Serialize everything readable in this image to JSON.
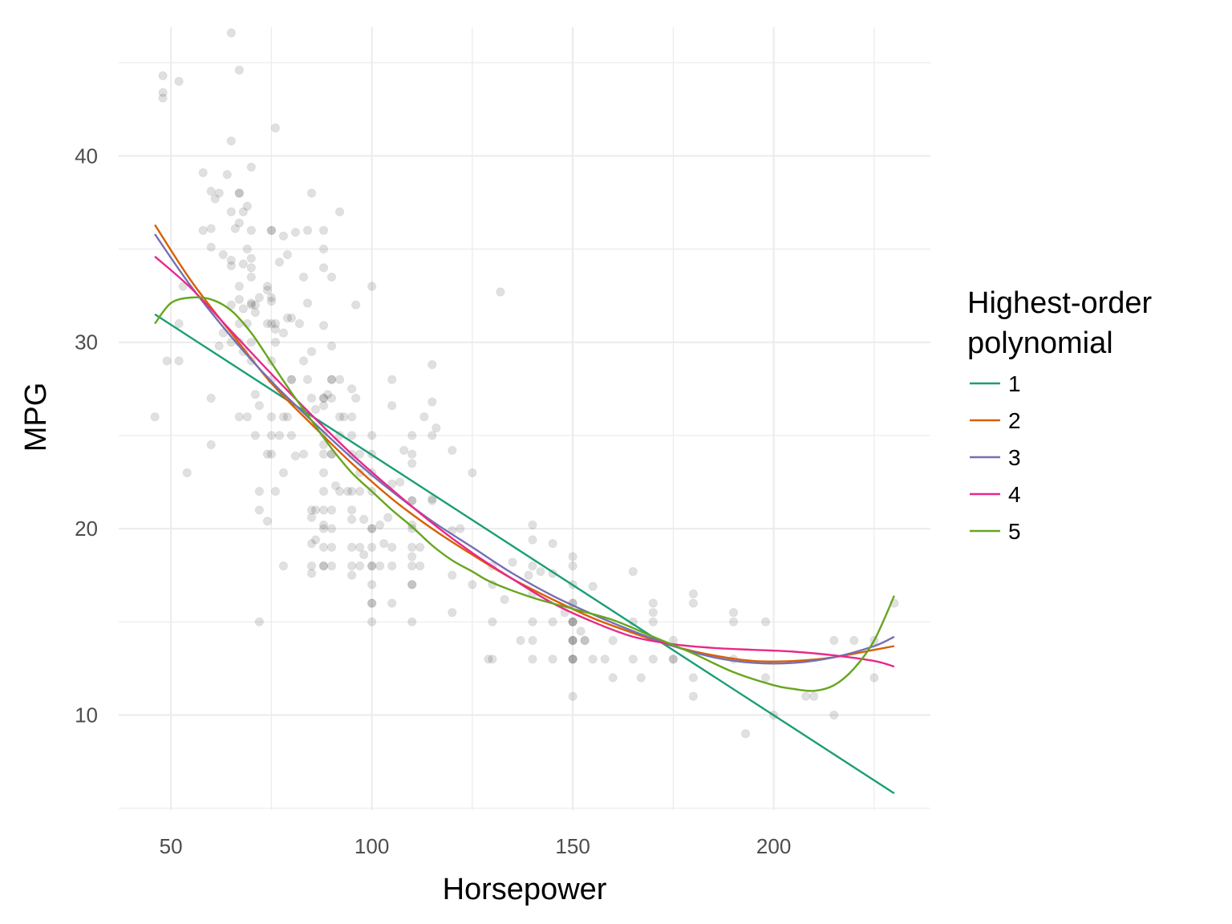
{
  "chart_data": {
    "type": "scatter",
    "xlabel": "Horsepower",
    "ylabel": "MPG",
    "xlim": [
      37,
      239
    ],
    "ylim": [
      4.9,
      46.9
    ],
    "x_ticks": [
      50,
      100,
      150,
      200
    ],
    "y_ticks": [
      10,
      20,
      30,
      40
    ],
    "grid": true,
    "legend": {
      "title_lines": [
        "Highest-order",
        "polynomial"
      ],
      "position": "right"
    },
    "points": [
      [
        46,
        26
      ],
      [
        48,
        43.1
      ],
      [
        48,
        43.4
      ],
      [
        48,
        44.3
      ],
      [
        49,
        29
      ],
      [
        52,
        44
      ],
      [
        52,
        29
      ],
      [
        52,
        31
      ],
      [
        53,
        33
      ],
      [
        54,
        23
      ],
      [
        58,
        39.1
      ],
      [
        58,
        36
      ],
      [
        60,
        38.1
      ],
      [
        60,
        36.1
      ],
      [
        60,
        35.1
      ],
      [
        60,
        27
      ],
      [
        60,
        24.5
      ],
      [
        61,
        37.7
      ],
      [
        62,
        38
      ],
      [
        62,
        29.8
      ],
      [
        63,
        34.7
      ],
      [
        63,
        30.5
      ],
      [
        64,
        39
      ],
      [
        65,
        46.6
      ],
      [
        65,
        40.8
      ],
      [
        65,
        37
      ],
      [
        65,
        34.4
      ],
      [
        65,
        34.1
      ],
      [
        65,
        32
      ],
      [
        65,
        30
      ],
      [
        66,
        36.1
      ],
      [
        67,
        44.6
      ],
      [
        67,
        38
      ],
      [
        67,
        38
      ],
      [
        67,
        36.4
      ],
      [
        67,
        33
      ],
      [
        67,
        32.3
      ],
      [
        67,
        31
      ],
      [
        67,
        30
      ],
      [
        67,
        26
      ],
      [
        68,
        37
      ],
      [
        68,
        34.2
      ],
      [
        68,
        31.8
      ],
      [
        68,
        29.5
      ],
      [
        69,
        37.3
      ],
      [
        69,
        35
      ],
      [
        69,
        31
      ],
      [
        69,
        26
      ],
      [
        70,
        39.4
      ],
      [
        70,
        36
      ],
      [
        70,
        34.5
      ],
      [
        70,
        34
      ],
      [
        70,
        33.5
      ],
      [
        70,
        32.1
      ],
      [
        70,
        32
      ],
      [
        70,
        30
      ],
      [
        70,
        29
      ],
      [
        71,
        32
      ],
      [
        71,
        31.6
      ],
      [
        71,
        27.2
      ],
      [
        71,
        25
      ],
      [
        72,
        32.4
      ],
      [
        72,
        26.6
      ],
      [
        72,
        22
      ],
      [
        72,
        21
      ],
      [
        72,
        15
      ],
      [
        74,
        33
      ],
      [
        74,
        32.8
      ],
      [
        74,
        31
      ],
      [
        74,
        24
      ],
      [
        74,
        20.4
      ],
      [
        75,
        36
      ],
      [
        75,
        36
      ],
      [
        75,
        32.4
      ],
      [
        75,
        32.2
      ],
      [
        75,
        31
      ],
      [
        75,
        29
      ],
      [
        75,
        28
      ],
      [
        75,
        26
      ],
      [
        75,
        24
      ],
      [
        75,
        25
      ],
      [
        76,
        41.5
      ],
      [
        76,
        31
      ],
      [
        76,
        30.7
      ],
      [
        76,
        30
      ],
      [
        76,
        22
      ],
      [
        77,
        34.3
      ],
      [
        77,
        25
      ],
      [
        78,
        35.7
      ],
      [
        78,
        30.5
      ],
      [
        78,
        26
      ],
      [
        78,
        23
      ],
      [
        78,
        18
      ],
      [
        79,
        34.7
      ],
      [
        79,
        31.3
      ],
      [
        79,
        26
      ],
      [
        80,
        31.3
      ],
      [
        80,
        28
      ],
      [
        80,
        25
      ],
      [
        80,
        28
      ],
      [
        81,
        35.9
      ],
      [
        81,
        23.9
      ],
      [
        82,
        31
      ],
      [
        83,
        33.5
      ],
      [
        83,
        29
      ],
      [
        83,
        24
      ],
      [
        84,
        36
      ],
      [
        84,
        32.1
      ],
      [
        84,
        28
      ],
      [
        85,
        38
      ],
      [
        85,
        29.5
      ],
      [
        85,
        27
      ],
      [
        85,
        21
      ],
      [
        85,
        20.6
      ],
      [
        85,
        19.2
      ],
      [
        85,
        18
      ],
      [
        85,
        17.6
      ],
      [
        86,
        26.4
      ],
      [
        86,
        21
      ],
      [
        86,
        19.4
      ],
      [
        88,
        36
      ],
      [
        88,
        35
      ],
      [
        88,
        34
      ],
      [
        88,
        30.9
      ],
      [
        88,
        27
      ],
      [
        88,
        27
      ],
      [
        88,
        25.1
      ],
      [
        88,
        26.6
      ],
      [
        88,
        24.5
      ],
      [
        88,
        24
      ],
      [
        88,
        23
      ],
      [
        88,
        22
      ],
      [
        88,
        21
      ],
      [
        88,
        20
      ],
      [
        88,
        19
      ],
      [
        88,
        18
      ],
      [
        88,
        18
      ],
      [
        88,
        20.2
      ],
      [
        89,
        27.2
      ],
      [
        90,
        33.5
      ],
      [
        90,
        29.8
      ],
      [
        90,
        28
      ],
      [
        90,
        28
      ],
      [
        90,
        27
      ],
      [
        90,
        24
      ],
      [
        90,
        24
      ],
      [
        90,
        21
      ],
      [
        90,
        20
      ],
      [
        90,
        19
      ],
      [
        90,
        18
      ],
      [
        91,
        22.3
      ],
      [
        92,
        37
      ],
      [
        92,
        28
      ],
      [
        92,
        26
      ],
      [
        92,
        25
      ],
      [
        92,
        22
      ],
      [
        93,
        26
      ],
      [
        94,
        22
      ],
      [
        95,
        27.5
      ],
      [
        95,
        26
      ],
      [
        95,
        25
      ],
      [
        95,
        24
      ],
      [
        95,
        22
      ],
      [
        95,
        21
      ],
      [
        95,
        20.5
      ],
      [
        95,
        19
      ],
      [
        95,
        18
      ],
      [
        95,
        17.5
      ],
      [
        96,
        32
      ],
      [
        96,
        27
      ],
      [
        97,
        24
      ],
      [
        97,
        23
      ],
      [
        97,
        22
      ],
      [
        97,
        19
      ],
      [
        97,
        18
      ],
      [
        98,
        20.5
      ],
      [
        98,
        18.6
      ],
      [
        100,
        33
      ],
      [
        100,
        25
      ],
      [
        100,
        24
      ],
      [
        100,
        23
      ],
      [
        100,
        22
      ],
      [
        100,
        20
      ],
      [
        100,
        20
      ],
      [
        100,
        19
      ],
      [
        100,
        18
      ],
      [
        100,
        18
      ],
      [
        100,
        17
      ],
      [
        100,
        16
      ],
      [
        100,
        16
      ],
      [
        100,
        15
      ],
      [
        102,
        20.2
      ],
      [
        102,
        18
      ],
      [
        103,
        19.2
      ],
      [
        104,
        20.6
      ],
      [
        105,
        28
      ],
      [
        105,
        26.6
      ],
      [
        105,
        22.4
      ],
      [
        105,
        18
      ],
      [
        105,
        16
      ],
      [
        105,
        19
      ],
      [
        107,
        22.5
      ],
      [
        108,
        24.2
      ],
      [
        110,
        25
      ],
      [
        110,
        24
      ],
      [
        110,
        23.5
      ],
      [
        110,
        21.5
      ],
      [
        110,
        21.5
      ],
      [
        110,
        20.2
      ],
      [
        110,
        20
      ],
      [
        110,
        19
      ],
      [
        110,
        18.5
      ],
      [
        110,
        18
      ],
      [
        110,
        17
      ],
      [
        110,
        17
      ],
      [
        110,
        15
      ],
      [
        112,
        19
      ],
      [
        112,
        18
      ],
      [
        113,
        26
      ],
      [
        115,
        28.8
      ],
      [
        115,
        26.8
      ],
      [
        115,
        25
      ],
      [
        115,
        21.6
      ],
      [
        115,
        21.5
      ],
      [
        116,
        25.4
      ],
      [
        120,
        24.2
      ],
      [
        120,
        19.9
      ],
      [
        120,
        17.5
      ],
      [
        120,
        15.5
      ],
      [
        122,
        20
      ],
      [
        125,
        23
      ],
      [
        125,
        17
      ],
      [
        129,
        13
      ],
      [
        130,
        18
      ],
      [
        130,
        17
      ],
      [
        130,
        15
      ],
      [
        130,
        13
      ],
      [
        132,
        32.7
      ],
      [
        133,
        16.2
      ],
      [
        135,
        18.2
      ],
      [
        137,
        14
      ],
      [
        139,
        17.5
      ],
      [
        140,
        20.2
      ],
      [
        140,
        19.4
      ],
      [
        140,
        18
      ],
      [
        140,
        16.5
      ],
      [
        140,
        15
      ],
      [
        140,
        14
      ],
      [
        140,
        13
      ],
      [
        142,
        17.7
      ],
      [
        145,
        19.2
      ],
      [
        145,
        17.6
      ],
      [
        145,
        15
      ],
      [
        145,
        13
      ],
      [
        148,
        15.5
      ],
      [
        150,
        18.5
      ],
      [
        150,
        18
      ],
      [
        150,
        17
      ],
      [
        150,
        16
      ],
      [
        150,
        16
      ],
      [
        150,
        15
      ],
      [
        150,
        15
      ],
      [
        150,
        15
      ],
      [
        150,
        14
      ],
      [
        150,
        14
      ],
      [
        150,
        14
      ],
      [
        150,
        13
      ],
      [
        150,
        13
      ],
      [
        150,
        13
      ],
      [
        150,
        11
      ],
      [
        152,
        14.5
      ],
      [
        153,
        14
      ],
      [
        153,
        14
      ],
      [
        155,
        16.9
      ],
      [
        155,
        13
      ],
      [
        158,
        13
      ],
      [
        160,
        14
      ],
      [
        160,
        12
      ],
      [
        165,
        17.7
      ],
      [
        165,
        15
      ],
      [
        165,
        13
      ],
      [
        167,
        12
      ],
      [
        170,
        16
      ],
      [
        170,
        15.5
      ],
      [
        170,
        15
      ],
      [
        170,
        13
      ],
      [
        175,
        13
      ],
      [
        175,
        14
      ],
      [
        175,
        13
      ],
      [
        180,
        16.5
      ],
      [
        180,
        16
      ],
      [
        180,
        12
      ],
      [
        180,
        11
      ],
      [
        190,
        15.5
      ],
      [
        190,
        15
      ],
      [
        190,
        13
      ],
      [
        193,
        9
      ],
      [
        198,
        15
      ],
      [
        198,
        12
      ],
      [
        200,
        10
      ],
      [
        208,
        11
      ],
      [
        210,
        11
      ],
      [
        215,
        14
      ],
      [
        215,
        10
      ],
      [
        220,
        14
      ],
      [
        225,
        14
      ],
      [
        225,
        12
      ],
      [
        230,
        16
      ]
    ],
    "series": [
      {
        "name": "1",
        "color": "#1b9e77",
        "x": [
          46,
          230
        ],
        "y": [
          31.5,
          5.8
        ]
      },
      {
        "name": "2",
        "color": "#d95f02",
        "x": [
          46,
          55,
          65,
          75,
          85,
          95,
          105,
          115,
          125,
          135,
          145,
          155,
          165,
          175,
          185,
          195,
          205,
          215,
          225,
          230
        ],
        "y": [
          36.3,
          33.3,
          30.5,
          27.8,
          25.6,
          23.5,
          21.6,
          20.0,
          18.6,
          17.3,
          16.2,
          15.2,
          14.4,
          13.7,
          13.2,
          12.9,
          12.9,
          13.1,
          13.5,
          13.7
        ]
      },
      {
        "name": "3",
        "color": "#7570b3",
        "x": [
          46,
          55,
          65,
          75,
          85,
          95,
          105,
          115,
          125,
          135,
          145,
          155,
          165,
          175,
          185,
          195,
          205,
          215,
          225,
          230
        ],
        "y": [
          35.8,
          33.0,
          30.3,
          27.9,
          25.8,
          23.8,
          22.0,
          20.4,
          19.0,
          17.6,
          16.4,
          15.4,
          14.5,
          13.7,
          13.1,
          12.8,
          12.8,
          13.1,
          13.7,
          14.2
        ]
      },
      {
        "name": "4",
        "color": "#e7298a",
        "x": [
          46,
          55,
          65,
          75,
          85,
          95,
          105,
          115,
          125,
          135,
          145,
          155,
          165,
          175,
          185,
          195,
          205,
          215,
          225,
          230
        ],
        "y": [
          34.6,
          32.9,
          30.6,
          28.3,
          26.1,
          24.0,
          22.1,
          20.3,
          18.7,
          17.3,
          16.0,
          15.0,
          14.2,
          13.8,
          13.6,
          13.5,
          13.4,
          13.2,
          12.9,
          12.6
        ]
      },
      {
        "name": "5",
        "color": "#66a61e",
        "x": [
          46,
          50,
          55,
          60,
          65,
          70,
          75,
          80,
          85,
          90,
          95,
          100,
          105,
          110,
          115,
          120,
          125,
          130,
          140,
          150,
          160,
          170,
          180,
          190,
          200,
          205,
          210,
          215,
          220,
          225,
          230
        ],
        "y": [
          31.0,
          32.1,
          32.4,
          32.3,
          31.7,
          30.5,
          28.9,
          27.3,
          25.8,
          24.3,
          23.0,
          22.0,
          21.0,
          20.1,
          19.1,
          18.3,
          17.7,
          17.1,
          16.3,
          15.7,
          15.1,
          14.2,
          13.3,
          12.3,
          11.6,
          11.4,
          11.3,
          11.6,
          12.5,
          14.0,
          16.4
        ]
      }
    ]
  }
}
